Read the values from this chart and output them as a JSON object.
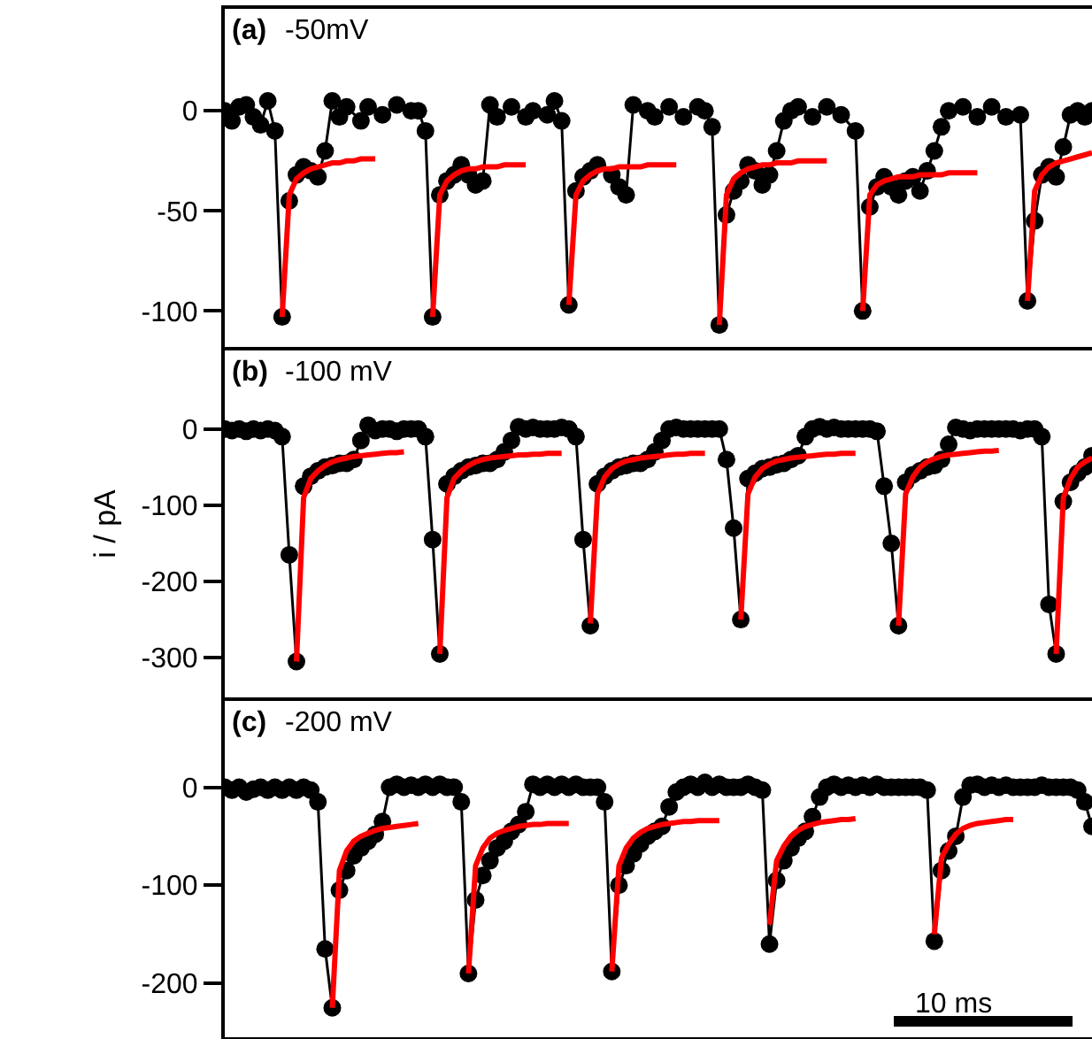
{
  "chart_data": [
    {
      "type": "line",
      "title": "(a)",
      "subtitle": "-50mV",
      "categories": [
        null,
        null,
        null,
        null,
        null,
        null,
        null,
        null,
        null,
        null,
        null,
        null,
        null,
        null,
        null,
        null,
        null,
        null,
        null,
        null,
        null,
        null,
        null,
        null,
        null,
        null,
        null,
        null,
        null,
        null,
        null,
        null,
        null,
        null,
        null,
        null,
        null,
        null,
        null,
        null,
        null,
        null,
        null,
        null,
        null,
        null,
        null,
        null,
        null,
        null,
        null,
        null,
        null,
        null,
        null,
        null,
        null,
        null,
        null,
        null,
        null,
        null,
        null,
        null,
        null,
        null,
        null,
        null,
        null,
        null,
        null,
        null,
        null,
        null,
        null,
        null,
        null,
        null,
        null,
        null,
        null,
        null,
        null,
        null,
        null,
        null,
        null,
        null,
        null,
        null,
        null,
        null,
        null,
        null,
        null,
        null,
        null,
        null,
        null,
        null,
        null,
        null,
        null,
        null,
        null,
        null,
        null,
        null,
        null,
        null,
        null,
        null,
        null,
        null,
        null,
        null,
        null,
        null,
        null,
        null,
        null,
        null
      ],
      "ylim": [
        -118,
        51
      ],
      "yticks": [
        -100,
        -50,
        0
      ],
      "tick_labels": "y",
      "grid": false,
      "series": [
        {
          "color": "#000000",
          "marker": "circle",
          "values": [
            0,
            -5,
            2,
            3,
            -3,
            -7,
            5,
            -10,
            -103,
            -45,
            -32,
            -28,
            -30,
            -33,
            -20,
            5,
            -3,
            2,
            null,
            -5,
            2,
            null,
            -2,
            null,
            3,
            null,
            0,
            0,
            -10,
            -103,
            -42,
            -35,
            -32,
            -27,
            -32,
            -37,
            -35,
            3,
            -3,
            null,
            2,
            null,
            -3,
            0,
            null,
            -2,
            5,
            -5,
            -97,
            -40,
            -33,
            -30,
            -27,
            null,
            -32,
            -38,
            -42,
            3,
            null,
            0,
            -3,
            null,
            2,
            null,
            -3,
            null,
            2,
            0,
            -8,
            -107,
            -52,
            -40,
            -35,
            -27,
            -30,
            -37,
            -32,
            -20,
            -5,
            0,
            2,
            null,
            -3,
            null,
            2,
            null,
            -2,
            null,
            -10,
            -100,
            -48,
            -38,
            -33,
            -38,
            -42,
            -35,
            -33,
            -40,
            -30,
            -20,
            -8,
            0,
            null,
            2,
            null,
            -3,
            null,
            2,
            null,
            -3,
            null,
            -2,
            -95,
            -55,
            -32,
            -28,
            -33,
            -18,
            -2,
            0,
            -3,
            0
          ]
        },
        {
          "color": "#ff0000",
          "marker": "none",
          "values": [
            null,
            null,
            null,
            null,
            null,
            null,
            null,
            null,
            -103,
            -42,
            -34,
            -31,
            -29,
            -28,
            -27,
            -26,
            -26,
            -25,
            -25,
            -24,
            -24,
            -24,
            null,
            null,
            null,
            null,
            null,
            null,
            null,
            -103,
            -42,
            -35,
            -32,
            -30,
            -29,
            -29,
            -28,
            -28,
            -28,
            -27,
            -27,
            -27,
            -27,
            null,
            null,
            null,
            null,
            null,
            -97,
            -42,
            -35,
            -32,
            -30,
            -29,
            -29,
            -28,
            -28,
            -28,
            -28,
            -27,
            -27,
            -27,
            -27,
            -27,
            null,
            null,
            null,
            null,
            null,
            -107,
            -42,
            -34,
            -31,
            -29,
            -28,
            -27,
            -27,
            -26,
            -26,
            -26,
            -25,
            -25,
            -25,
            -25,
            -25,
            null,
            null,
            null,
            null,
            -100,
            -42,
            -37,
            -35,
            -34,
            -33,
            -33,
            -33,
            -32,
            -32,
            -32,
            -32,
            -31,
            -31,
            -31,
            -31,
            -31,
            null,
            null,
            null,
            null,
            null,
            null,
            -95,
            -40,
            -32,
            -28,
            -26,
            -25,
            -24,
            -23,
            -22,
            -21
          ]
        }
      ]
    },
    {
      "type": "line",
      "title": "(b)",
      "subtitle": "-100 mV",
      "ylabel": "i / pA",
      "categories": [
        null,
        null,
        null,
        null,
        null,
        null,
        null,
        null,
        null,
        null,
        null,
        null,
        null,
        null,
        null,
        null,
        null,
        null,
        null,
        null,
        null,
        null,
        null,
        null,
        null,
        null,
        null,
        null,
        null,
        null,
        null,
        null,
        null,
        null,
        null,
        null,
        null,
        null,
        null,
        null,
        null,
        null,
        null,
        null,
        null,
        null,
        null,
        null,
        null,
        null,
        null,
        null,
        null,
        null,
        null,
        null,
        null,
        null,
        null,
        null,
        null,
        null,
        null,
        null,
        null,
        null,
        null,
        null,
        null,
        null,
        null,
        null,
        null,
        null,
        null,
        null,
        null,
        null,
        null,
        null,
        null,
        null,
        null,
        null,
        null,
        null,
        null,
        null,
        null,
        null,
        null,
        null,
        null,
        null,
        null,
        null,
        null,
        null,
        null,
        null,
        null,
        null,
        null,
        null,
        null,
        null,
        null,
        null,
        null,
        null,
        null,
        null,
        null,
        null,
        null,
        null,
        null,
        null,
        null,
        null,
        null,
        null
      ],
      "ylim": [
        -352,
        103
      ],
      "yticks": [
        -300,
        -200,
        -100,
        0
      ],
      "tick_labels": "y",
      "grid": false,
      "series": [
        {
          "color": "#000000",
          "marker": "circle",
          "values": [
            0,
            -2,
            0,
            -3,
            0,
            -2,
            0,
            -2,
            -10,
            -165,
            -305,
            -75,
            -62,
            -55,
            -50,
            -48,
            -45,
            -45,
            -40,
            -15,
            5,
            -2,
            0,
            0,
            -3,
            0,
            0,
            0,
            -10,
            -145,
            -295,
            -72,
            -62,
            -55,
            -50,
            -48,
            -45,
            -45,
            -40,
            -30,
            -15,
            3,
            0,
            2,
            0,
            0,
            0,
            2,
            0,
            -10,
            -145,
            -258,
            -72,
            -62,
            -55,
            -50,
            -48,
            -45,
            -45,
            -40,
            -30,
            -15,
            0,
            2,
            0,
            0,
            0,
            0,
            0,
            0,
            -40,
            -130,
            -250,
            -65,
            -58,
            -52,
            -50,
            -47,
            -45,
            -40,
            -35,
            -10,
            0,
            3,
            0,
            2,
            0,
            0,
            0,
            0,
            0,
            -3,
            -75,
            -150,
            -258,
            -70,
            -60,
            -55,
            -50,
            -48,
            -40,
            -20,
            2,
            0,
            -2,
            0,
            0,
            0,
            0,
            0,
            0,
            -2,
            0,
            0,
            -10,
            -230,
            -295,
            -95,
            -70,
            -58,
            -50,
            -35
          ]
        },
        {
          "color": "#ff0000",
          "marker": "none",
          "values": [
            null,
            null,
            null,
            null,
            null,
            null,
            null,
            null,
            null,
            null,
            -305,
            -90,
            -65,
            -55,
            -48,
            -43,
            -40,
            -38,
            -36,
            -35,
            -34,
            -33,
            -32,
            -31,
            -31,
            -30,
            null,
            null,
            null,
            null,
            -295,
            -90,
            -65,
            -55,
            -48,
            -43,
            -40,
            -38,
            -37,
            -36,
            -35,
            -34,
            -34,
            -33,
            -33,
            -32,
            -32,
            -32,
            null,
            null,
            null,
            -255,
            -85,
            -63,
            -52,
            -46,
            -42,
            -40,
            -38,
            -37,
            -36,
            -35,
            -34,
            -33,
            -33,
            -32,
            -32,
            -32,
            null,
            null,
            null,
            null,
            -250,
            -85,
            -63,
            -52,
            -46,
            -42,
            -40,
            -38,
            -37,
            -36,
            -35,
            -34,
            -33,
            -33,
            -32,
            -32,
            -32,
            null,
            null,
            null,
            null,
            null,
            -258,
            -85,
            -63,
            -50,
            -43,
            -39,
            -36,
            -34,
            -33,
            -32,
            -31,
            -30,
            -29,
            -29,
            -28,
            null,
            null,
            null,
            null,
            null,
            null,
            null,
            -295,
            -90,
            -65,
            -50,
            -43,
            -38
          ]
        }
      ]
    },
    {
      "type": "line",
      "title": "(c)",
      "subtitle": "-200 mV",
      "categories": [
        null,
        null,
        null,
        null,
        null,
        null,
        null,
        null,
        null,
        null,
        null,
        null,
        null,
        null,
        null,
        null,
        null,
        null,
        null,
        null,
        null,
        null,
        null,
        null,
        null,
        null,
        null,
        null,
        null,
        null,
        null,
        null,
        null,
        null,
        null,
        null,
        null,
        null,
        null,
        null,
        null,
        null,
        null,
        null,
        null,
        null,
        null,
        null,
        null,
        null,
        null,
        null,
        null,
        null,
        null,
        null,
        null,
        null,
        null,
        null,
        null,
        null,
        null,
        null,
        null,
        null,
        null,
        null,
        null,
        null,
        null,
        null,
        null,
        null,
        null,
        null,
        null,
        null,
        null,
        null,
        null,
        null,
        null,
        null,
        null,
        null,
        null,
        null,
        null,
        null,
        null,
        null,
        null,
        null,
        null,
        null,
        null,
        null,
        null,
        null,
        null,
        null,
        null,
        null,
        null,
        null,
        null,
        null,
        null,
        null,
        null,
        null,
        null,
        null,
        null,
        null,
        null,
        null,
        null,
        null,
        null,
        null
      ],
      "ylim": [
        -255,
        88
      ],
      "yticks": [
        -200,
        -100,
        0
      ],
      "tick_labels": "y",
      "grid": false,
      "annotations": [
        "10 ms"
      ],
      "series": [
        {
          "color": "#000000",
          "marker": "circle",
          "values": [
            0,
            -3,
            0,
            -5,
            -2,
            0,
            -3,
            0,
            -3,
            0,
            -3,
            0,
            -3,
            -15,
            -165,
            -225,
            -105,
            -85,
            -70,
            -62,
            -55,
            -48,
            -35,
            0,
            3,
            0,
            2,
            0,
            3,
            0,
            3,
            0,
            0,
            -15,
            -190,
            -115,
            -90,
            -75,
            -62,
            -55,
            -45,
            -38,
            -25,
            3,
            0,
            3,
            0,
            3,
            0,
            3,
            0,
            0,
            0,
            -15,
            -188,
            -100,
            -80,
            -68,
            -58,
            -50,
            -45,
            -40,
            -20,
            -5,
            0,
            3,
            0,
            5,
            0,
            3,
            0,
            0,
            0,
            3,
            0,
            -3,
            -160,
            -95,
            -75,
            -62,
            -52,
            -45,
            -30,
            -10,
            0,
            3,
            0,
            2,
            0,
            2,
            0,
            3,
            0,
            0,
            0,
            0,
            0,
            0,
            -3,
            -157,
            -85,
            -65,
            -50,
            -10,
            2,
            3,
            0,
            2,
            0,
            2,
            0,
            0,
            0,
            0,
            2,
            0,
            0,
            0,
            0,
            -3,
            -15,
            -40
          ]
        },
        {
          "color": "#ff0000",
          "marker": "none",
          "values": [
            null,
            null,
            null,
            null,
            null,
            null,
            null,
            null,
            null,
            null,
            null,
            null,
            null,
            null,
            null,
            -225,
            -85,
            -65,
            -55,
            -50,
            -47,
            -44,
            -42,
            -41,
            -40,
            -39,
            -38,
            -37,
            null,
            null,
            null,
            null,
            null,
            null,
            -190,
            -80,
            -62,
            -52,
            -47,
            -44,
            -42,
            -40,
            -39,
            -38,
            -38,
            -37,
            -37,
            -37,
            -37,
            null,
            null,
            null,
            null,
            null,
            -188,
            -80,
            -62,
            -52,
            -46,
            -42,
            -40,
            -38,
            -37,
            -36,
            -35,
            -35,
            -34,
            -34,
            -34,
            -34,
            null,
            null,
            null,
            null,
            null,
            null,
            -140,
            -75,
            -60,
            -50,
            -44,
            -40,
            -38,
            -36,
            -35,
            -34,
            -33,
            -33,
            -32,
            null,
            null,
            null,
            null,
            null,
            null,
            null,
            null,
            null,
            null,
            -150,
            -72,
            -58,
            -48,
            -42,
            -39,
            -37,
            -36,
            -35,
            -34,
            -33,
            -33,
            null,
            null,
            null,
            null,
            null,
            null,
            null,
            null,
            null,
            null,
            null
          ]
        }
      ]
    }
  ]
}
